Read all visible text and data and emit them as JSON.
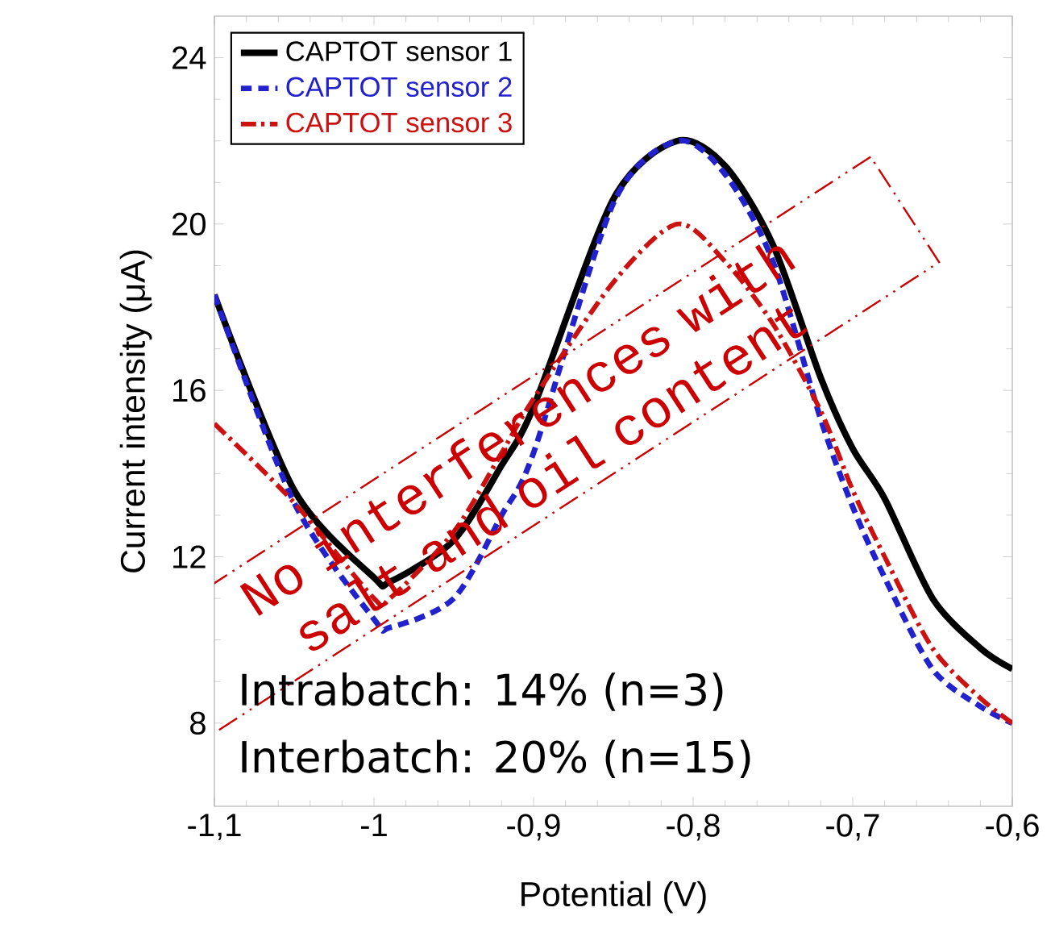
{
  "chart_data": {
    "type": "line",
    "xlabel": "Potential (V)",
    "ylabel": "Current intensity (μA)",
    "xlim": [
      -1.1,
      -0.6
    ],
    "ylim": [
      6,
      25
    ],
    "xticks": [
      {
        "value": -1.1,
        "label": "-1,1"
      },
      -1,
      {
        "value": -0.9,
        "label": "-0,9"
      },
      {
        "value": -0.8,
        "label": "-0,8"
      },
      {
        "value": -0.7,
        "label": "-0,7"
      },
      {
        "value": -0.6,
        "label": "-0,6"
      }
    ],
    "yticks": [
      8,
      12,
      16,
      20,
      24
    ],
    "grid": false,
    "legend": "top left",
    "marker": "none",
    "x": [
      -1.1,
      -1.05,
      -1.0,
      -0.99,
      -0.95,
      -0.92,
      -0.9,
      -0.85,
      -0.81,
      -0.78,
      -0.75,
      -0.72,
      -0.7,
      -0.68,
      -0.65,
      -0.62,
      -0.6
    ],
    "series": [
      {
        "name": "CAPTOT sensor 1",
        "color": "#000000",
        "line_style": "solid",
        "values": [
          18.3,
          13.6,
          11.5,
          11.4,
          12.4,
          14.2,
          15.6,
          20.6,
          22.0,
          21.4,
          19.5,
          16.3,
          14.6,
          13.4,
          11.0,
          9.8,
          9.3
        ]
      },
      {
        "name": "CAPTOT sensor 2",
        "color": "#2222cc",
        "line_style": "dashed",
        "values": [
          18.3,
          13.3,
          10.5,
          10.3,
          11.0,
          13.0,
          14.5,
          20.5,
          22.0,
          21.2,
          19.1,
          15.3,
          13.2,
          11.5,
          9.3,
          8.4,
          8.0
        ]
      },
      {
        "name": "CAPTOT sensor 3",
        "color": "#cc1111",
        "line_style": "dashdot",
        "values": [
          15.2,
          13.3,
          11.0,
          11.0,
          12.6,
          14.5,
          15.8,
          18.6,
          20.0,
          19.1,
          17.6,
          15.5,
          13.6,
          12.0,
          9.8,
          8.6,
          8.0
        ]
      }
    ],
    "annotations": [
      "No interferences with salt and oil content",
      "Intrabatch: 14% (n=3)",
      "Interbatch: 20% (n=15)"
    ]
  }
}
